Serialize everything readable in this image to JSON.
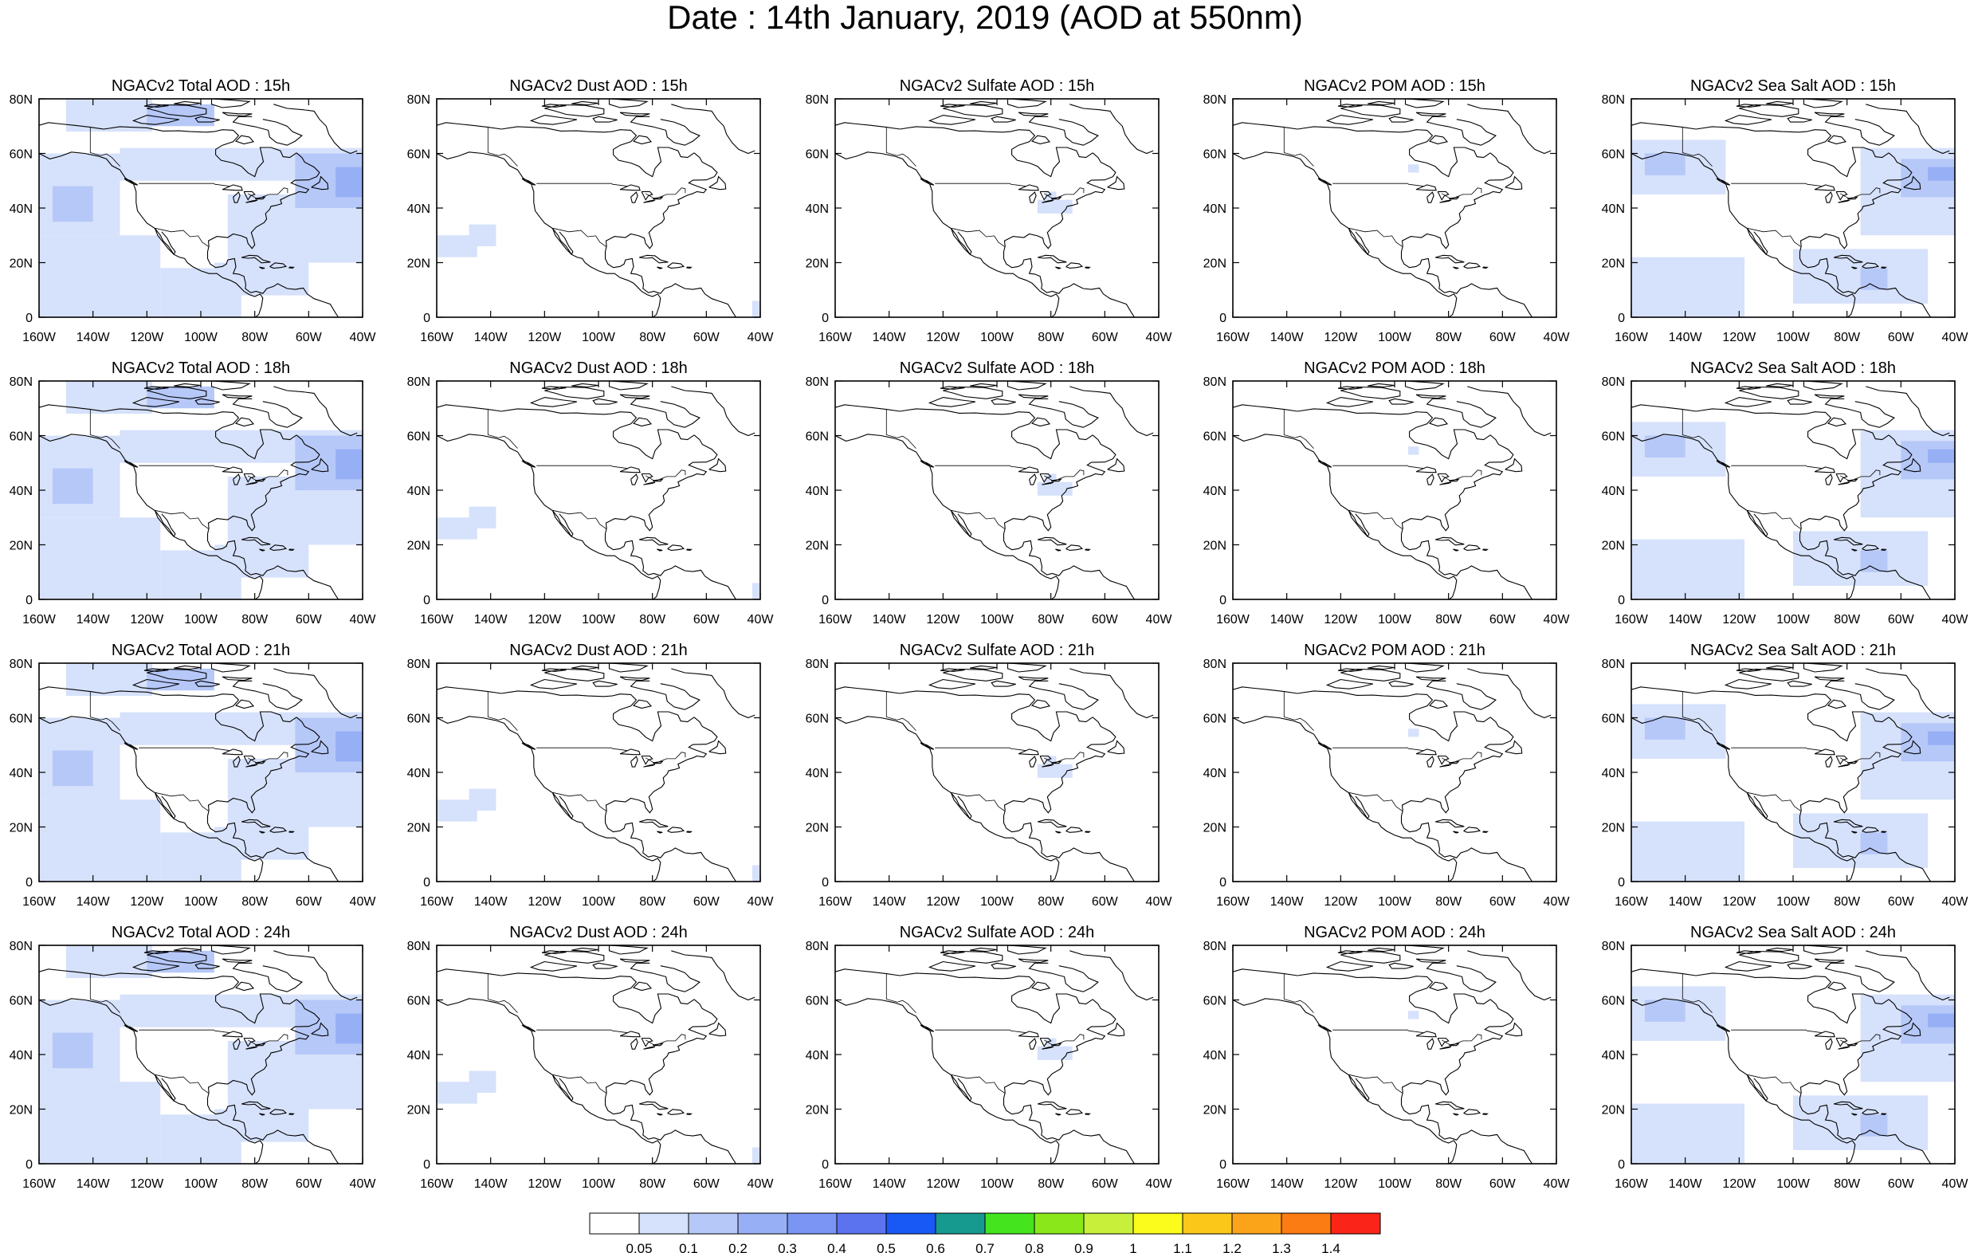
{
  "title": "Date : 14th January, 2019 (AOD at 550nm)",
  "panels": [
    [
      "NGACv2 Total AOD : 15h",
      "NGACv2 Dust AOD : 15h",
      "NGACv2 Sulfate AOD : 15h",
      "NGACv2 POM AOD : 15h",
      "NGACv2 Sea Salt AOD : 15h"
    ],
    [
      "NGACv2 Total AOD : 18h",
      "NGACv2 Dust AOD : 18h",
      "NGACv2 Sulfate AOD : 18h",
      "NGACv2 POM AOD : 18h",
      "NGACv2 Sea Salt AOD : 18h"
    ],
    [
      "NGACv2 Total AOD : 21h",
      "NGACv2 Dust AOD : 21h",
      "NGACv2 Sulfate AOD : 21h",
      "NGACv2 POM AOD : 21h",
      "NGACv2 Sea Salt AOD : 21h"
    ],
    [
      "NGACv2 Total AOD : 24h",
      "NGACv2 Dust AOD : 24h",
      "NGACv2 Sulfate AOD : 24h",
      "NGACv2 POM AOD : 24h",
      "NGACv2 Sea Salt  AOD : 24h"
    ]
  ],
  "x_ticks": [
    "160W",
    "140W",
    "120W",
    "100W",
    "80W",
    "60W",
    "40W"
  ],
  "y_ticks": [
    "0",
    "20N",
    "40N",
    "60N",
    "80N"
  ],
  "x_range_deg": [
    -160,
    -40
  ],
  "y_range_deg": [
    0,
    80
  ],
  "colorbar": {
    "labels": [
      "0.05",
      "0.1",
      "0.2",
      "0.3",
      "0.4",
      "0.5",
      "0.6",
      "0.7",
      "0.8",
      "0.9",
      "1",
      "1.1",
      "1.2",
      "1.3",
      "1.4"
    ],
    "colors": [
      "#ffffff",
      "#d6e1fb",
      "#b6c8f8",
      "#97aff5",
      "#7a95f3",
      "#5c73f0",
      "#1858f5",
      "#16998f",
      "#44e41e",
      "#8ae81a",
      "#c8f03a",
      "#fbfb1c",
      "#fbc81a",
      "#fba41a",
      "#fb7c12",
      "#fa2418"
    ]
  },
  "shading_levels": {
    "light": "#d6e1fb",
    "medium": "#b6c8f8",
    "strong": "#97aff5"
  }
}
